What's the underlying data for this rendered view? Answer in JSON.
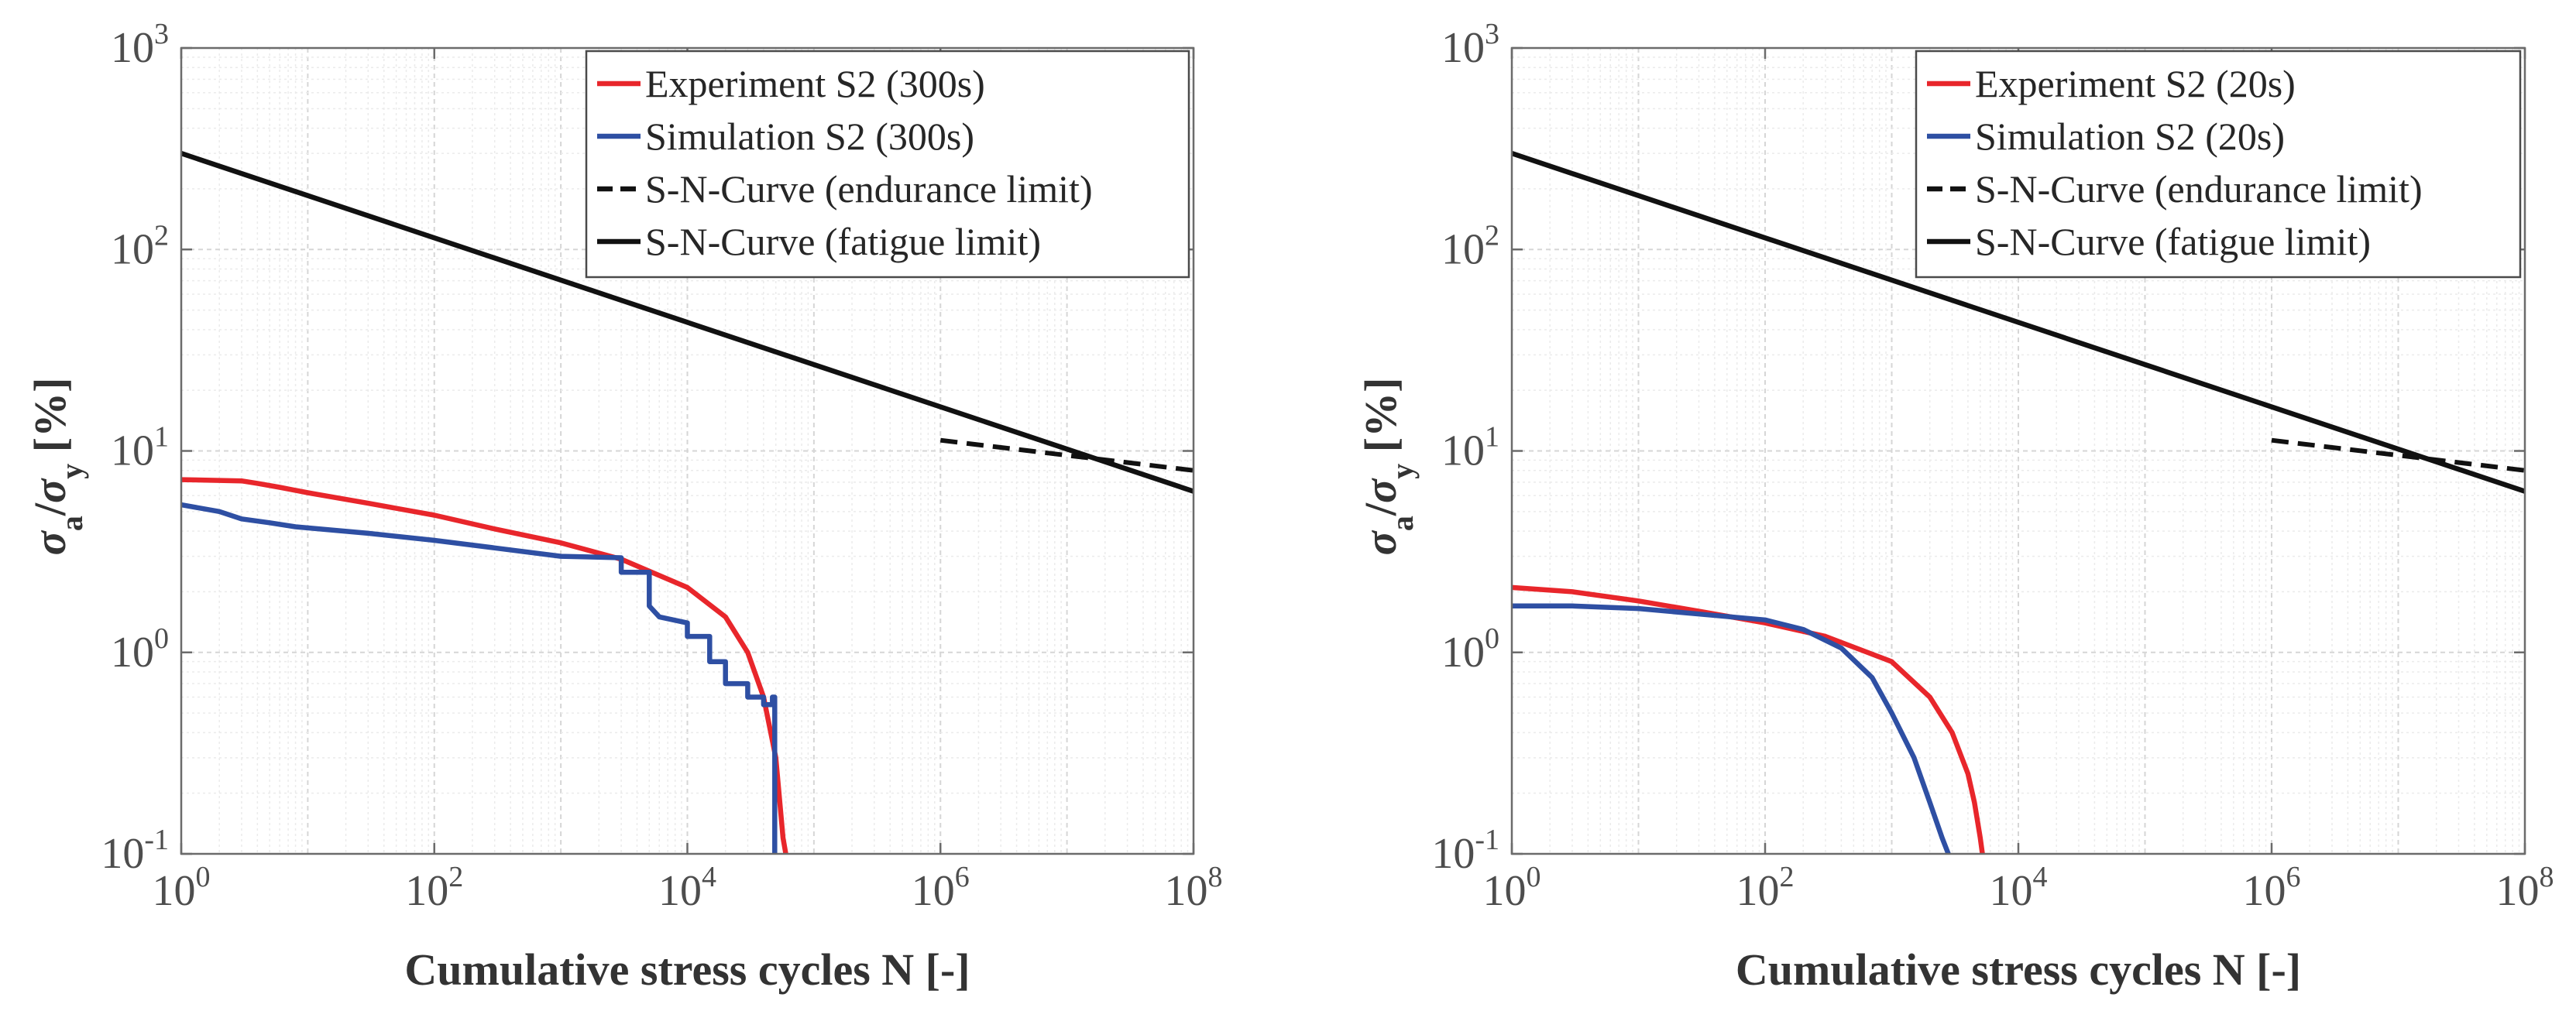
{
  "chart_data": [
    {
      "type": "line",
      "xscale": "log",
      "yscale": "log",
      "xlim": [
        1,
        100000000
      ],
      "ylim": [
        0.1,
        1000
      ],
      "xticks": [
        {
          "base": "10",
          "exp": "0"
        },
        {
          "base": "10",
          "exp": "2"
        },
        {
          "base": "10",
          "exp": "4"
        },
        {
          "base": "10",
          "exp": "6"
        },
        {
          "base": "10",
          "exp": "8"
        }
      ],
      "yticks": [
        {
          "base": "10",
          "exp": "-1"
        },
        {
          "base": "10",
          "exp": "0"
        },
        {
          "base": "10",
          "exp": "1"
        },
        {
          "base": "10",
          "exp": "2"
        },
        {
          "base": "10",
          "exp": "3"
        }
      ],
      "xlabel": "Cumulative stress cycles N [-]",
      "ylabel": {
        "sigma": "σ",
        "sub_a": "a",
        "slash": "/",
        "sub_y": "y",
        "unit": "[%]"
      },
      "grid": true,
      "legend_position": "top-right",
      "series": [
        {
          "name": "Experiment S2 (300s)",
          "color": "#e8262b",
          "style": "solid",
          "x": [
            1,
            3,
            4,
            6,
            10,
            30,
            100,
            300,
            1000,
            3000,
            10000,
            20000,
            30000,
            40000,
            50000,
            57000,
            60000
          ],
          "y": [
            7.2,
            7.1,
            6.9,
            6.6,
            6.2,
            5.5,
            4.8,
            4.1,
            3.5,
            2.9,
            2.1,
            1.5,
            1.0,
            0.6,
            0.3,
            0.12,
            0.1
          ]
        },
        {
          "name": "Simulation S2 (300s)",
          "color": "#2e4fa3",
          "style": "solid",
          "x": [
            1,
            2,
            3,
            5,
            8,
            30,
            100,
            300,
            1000,
            3000,
            3000,
            5000,
            5000,
            6000,
            10000,
            10000,
            15000,
            15000,
            20000,
            20000,
            30000,
            30000,
            40000,
            40000,
            47000,
            47000,
            49000,
            49000
          ],
          "y": [
            5.4,
            5.0,
            4.6,
            4.4,
            4.2,
            3.9,
            3.6,
            3.3,
            3.0,
            2.95,
            2.5,
            2.5,
            1.7,
            1.5,
            1.4,
            1.2,
            1.2,
            0.9,
            0.9,
            0.7,
            0.7,
            0.6,
            0.6,
            0.55,
            0.55,
            0.6,
            0.6,
            0.1
          ]
        },
        {
          "name": "S-N-Curve (endurance limit)",
          "color": "#111111",
          "style": "dashed",
          "x": [
            1000000,
            100000000
          ],
          "y": [
            11.3,
            8.0
          ]
        },
        {
          "name": "S-N-Curve (fatigue limit)",
          "color": "#111111",
          "style": "solid",
          "x": [
            1,
            100000000
          ],
          "y": [
            300,
            6.3
          ]
        }
      ]
    },
    {
      "type": "line",
      "xscale": "log",
      "yscale": "log",
      "xlim": [
        1,
        100000000
      ],
      "ylim": [
        0.1,
        1000
      ],
      "xticks": [
        {
          "base": "10",
          "exp": "0"
        },
        {
          "base": "10",
          "exp": "2"
        },
        {
          "base": "10",
          "exp": "4"
        },
        {
          "base": "10",
          "exp": "6"
        },
        {
          "base": "10",
          "exp": "8"
        }
      ],
      "yticks": [
        {
          "base": "10",
          "exp": "-1"
        },
        {
          "base": "10",
          "exp": "0"
        },
        {
          "base": "10",
          "exp": "1"
        },
        {
          "base": "10",
          "exp": "2"
        },
        {
          "base": "10",
          "exp": "3"
        }
      ],
      "xlabel": "Cumulative stress cycles N [-]",
      "ylabel": {
        "sigma": "σ",
        "sub_a": "a",
        "slash": "/",
        "sub_y": "y",
        "unit": "[%]"
      },
      "grid": true,
      "legend_position": "top-right",
      "series": [
        {
          "name": "Experiment S2 (20s)",
          "color": "#e8262b",
          "style": "solid",
          "x": [
            1,
            3,
            10,
            30,
            100,
            300,
            1000,
            2000,
            3000,
            4000,
            4500,
            5000,
            5200
          ],
          "y": [
            2.1,
            2.0,
            1.8,
            1.6,
            1.4,
            1.2,
            0.9,
            0.6,
            0.4,
            0.25,
            0.18,
            0.12,
            0.1
          ]
        },
        {
          "name": "Simulation S2 (20s)",
          "color": "#2e4fa3",
          "style": "solid",
          "x": [
            1,
            3,
            10,
            30,
            100,
            200,
            400,
            700,
            1000,
            1500,
            2000,
            2500,
            2800
          ],
          "y": [
            1.7,
            1.7,
            1.65,
            1.55,
            1.45,
            1.3,
            1.05,
            0.75,
            0.5,
            0.3,
            0.18,
            0.12,
            0.1
          ]
        },
        {
          "name": "S-N-Curve (endurance limit)",
          "color": "#111111",
          "style": "dashed",
          "x": [
            1000000,
            100000000
          ],
          "y": [
            11.3,
            8.0
          ]
        },
        {
          "name": "S-N-Curve (fatigue limit)",
          "color": "#111111",
          "style": "solid",
          "x": [
            1,
            100000000
          ],
          "y": [
            300,
            6.3
          ]
        }
      ]
    }
  ]
}
